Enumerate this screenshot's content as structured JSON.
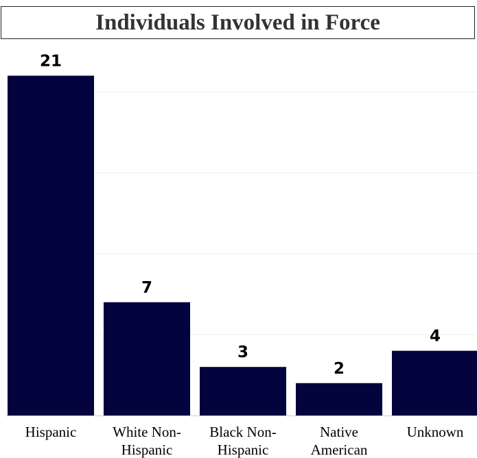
{
  "chart_data": {
    "type": "bar",
    "title": "Individuals Involved in Force",
    "categories": [
      [
        "Hispanic"
      ],
      [
        "White Non-",
        "Hispanic"
      ],
      [
        "Black Non-",
        "Hispanic"
      ],
      [
        "Native",
        "American"
      ],
      [
        "Unknown"
      ]
    ],
    "values": [
      21,
      7,
      3,
      2,
      4
    ],
    "ylim": [
      0,
      25
    ],
    "grid": true,
    "colors": {
      "bar": "#03033d",
      "grid": "#eeeeee",
      "axis": "#cccccc"
    }
  }
}
